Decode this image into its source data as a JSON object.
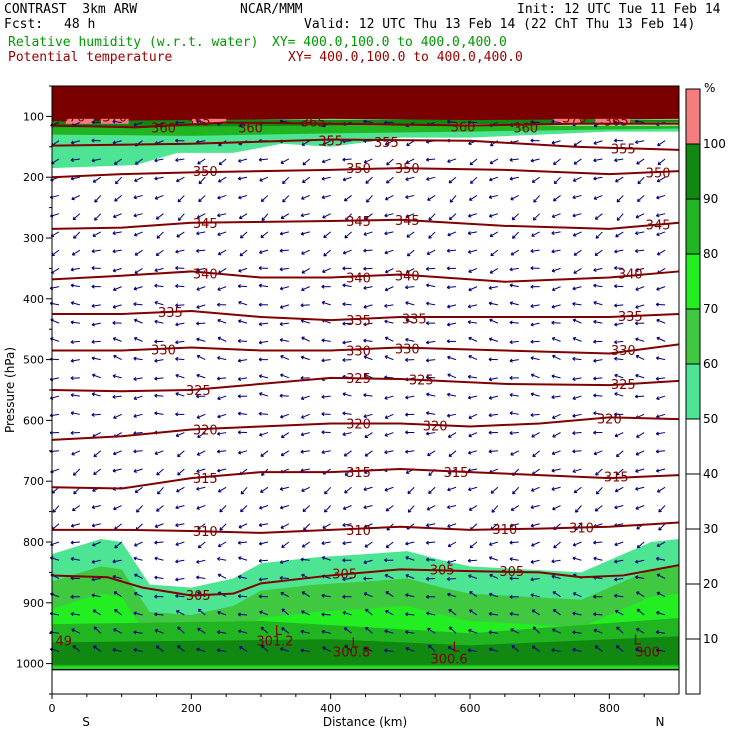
{
  "header": {
    "model": "CONTRAST  3km ARW",
    "fcst_label": "Fcst:",
    "fcst_value": "48 h",
    "center": "NCAR/MMM",
    "init": "Init: 12 UTC Tue 11 Feb 14",
    "valid": "Valid: 12 UTC Thu 13 Feb 14 (22 ChT Thu 13 Feb 14)",
    "field1_label": "Relative humidity (w.r.t. water)",
    "field1_xy": "XY= 400.0,100.0 to 400.0,400.0",
    "field2_label": "Potential temperature",
    "field2_xy": "XY= 400.0,100.0 to 400.0,400.0"
  },
  "chart_data": {
    "type": "heatmap",
    "title": "",
    "xlabel": "Distance (km)",
    "ylabel": "Pressure (hPa)",
    "xlim": [
      0,
      900
    ],
    "ylim": [
      1050,
      50
    ],
    "x_ticks": [
      "0",
      "200",
      "400",
      "600",
      "800"
    ],
    "x_tick_values": [
      0,
      200,
      400,
      600,
      800
    ],
    "y_ticks": [
      "100",
      "200",
      "300",
      "400",
      "500",
      "600",
      "700",
      "800",
      "900",
      "1000"
    ],
    "y_tick_values": [
      100,
      200,
      300,
      400,
      500,
      600,
      700,
      800,
      900,
      1000
    ],
    "x_end_labels": {
      "left": "S",
      "right": "N"
    },
    "colorbar": {
      "unit": "%",
      "levels": [
        10,
        20,
        30,
        40,
        50,
        60,
        70,
        80,
        90,
        100
      ],
      "bands": [
        {
          "from": 50,
          "to": 60,
          "color": "#4de594"
        },
        {
          "from": 60,
          "to": 70,
          "color": "#40c840"
        },
        {
          "from": 70,
          "to": 80,
          "color": "#22ee22"
        },
        {
          "from": 80,
          "to": 90,
          "color": "#22b522"
        },
        {
          "from": 90,
          "to": 100,
          "color": "#118811"
        },
        {
          "from": 100,
          "to": 110,
          "color": "#f47e7e"
        }
      ]
    },
    "moist_layers": [
      {
        "name": "upper",
        "top": [
          [
            0,
            115
          ],
          [
            900,
            115
          ]
        ],
        "bottom": [
          [
            0,
            185
          ],
          [
            120,
            180
          ],
          [
            180,
            160
          ],
          [
            260,
            160
          ],
          [
            330,
            145
          ],
          [
            400,
            150
          ],
          [
            500,
            135
          ],
          [
            600,
            135
          ],
          [
            700,
            130
          ],
          [
            800,
            125
          ],
          [
            900,
            125
          ]
        ],
        "color": "#4de594"
      },
      {
        "name": "boundary",
        "top": [
          [
            0,
            820
          ],
          [
            70,
            795
          ],
          [
            100,
            800
          ],
          [
            140,
            870
          ],
          [
            200,
            875
          ],
          [
            260,
            860
          ],
          [
            300,
            835
          ],
          [
            380,
            825
          ],
          [
            450,
            820
          ],
          [
            510,
            815
          ],
          [
            560,
            830
          ],
          [
            600,
            840
          ],
          [
            680,
            845
          ],
          [
            760,
            850
          ],
          [
            820,
            820
          ],
          [
            860,
            800
          ],
          [
            900,
            795
          ]
        ],
        "bottom": [
          [
            0,
            1010
          ],
          [
            900,
            1010
          ]
        ],
        "color": "#4de594"
      }
    ],
    "theta_series": [
      {
        "label": "360",
        "points": [
          [
            0,
            115
          ],
          [
            120,
            118
          ],
          [
            250,
            110
          ],
          [
            400,
            112
          ],
          [
            600,
            115
          ],
          [
            750,
            112
          ],
          [
            900,
            112
          ]
        ]
      },
      {
        "label": "355",
        "points": [
          [
            0,
            148
          ],
          [
            200,
            145
          ],
          [
            400,
            138
          ],
          [
            600,
            140
          ],
          [
            750,
            150
          ],
          [
            900,
            155
          ]
        ]
      },
      {
        "label": "350",
        "points": [
          [
            0,
            200
          ],
          [
            100,
            195
          ],
          [
            200,
            192
          ],
          [
            400,
            188
          ],
          [
            500,
            185
          ],
          [
            650,
            188
          ],
          [
            800,
            195
          ],
          [
            900,
            190
          ]
        ]
      },
      {
        "label": "345",
        "points": [
          [
            0,
            285
          ],
          [
            100,
            283
          ],
          [
            200,
            275
          ],
          [
            400,
            272
          ],
          [
            500,
            270
          ],
          [
            650,
            280
          ],
          [
            800,
            285
          ],
          [
            900,
            275
          ]
        ]
      },
      {
        "label": "340",
        "points": [
          [
            0,
            368
          ],
          [
            100,
            362
          ],
          [
            200,
            355
          ],
          [
            300,
            365
          ],
          [
            400,
            365
          ],
          [
            500,
            360
          ],
          [
            650,
            372
          ],
          [
            800,
            365
          ],
          [
            900,
            355
          ]
        ]
      },
      {
        "label": "335",
        "points": [
          [
            0,
            425
          ],
          [
            100,
            425
          ],
          [
            200,
            420
          ],
          [
            300,
            430
          ],
          [
            400,
            435
          ],
          [
            500,
            430
          ],
          [
            650,
            430
          ],
          [
            800,
            430
          ],
          [
            900,
            425
          ]
        ]
      },
      {
        "label": "330",
        "points": [
          [
            0,
            485
          ],
          [
            100,
            485
          ],
          [
            200,
            480
          ],
          [
            300,
            485
          ],
          [
            400,
            485
          ],
          [
            500,
            480
          ],
          [
            650,
            485
          ],
          [
            800,
            490
          ],
          [
            900,
            475
          ]
        ]
      },
      {
        "label": "325",
        "points": [
          [
            0,
            550
          ],
          [
            100,
            552
          ],
          [
            200,
            550
          ],
          [
            300,
            540
          ],
          [
            400,
            530
          ],
          [
            500,
            532
          ],
          [
            650,
            540
          ],
          [
            800,
            542
          ],
          [
            900,
            535
          ]
        ]
      },
      {
        "label": "320",
        "points": [
          [
            0,
            632
          ],
          [
            100,
            626
          ],
          [
            200,
            615
          ],
          [
            300,
            610
          ],
          [
            400,
            605
          ],
          [
            500,
            605
          ],
          [
            600,
            610
          ],
          [
            700,
            605
          ],
          [
            800,
            595
          ],
          [
            900,
            598
          ]
        ]
      },
      {
        "label": "315",
        "points": [
          [
            0,
            710
          ],
          [
            100,
            712
          ],
          [
            200,
            695
          ],
          [
            300,
            685
          ],
          [
            400,
            685
          ],
          [
            500,
            680
          ],
          [
            600,
            685
          ],
          [
            700,
            690
          ],
          [
            800,
            695
          ],
          [
            900,
            690
          ]
        ]
      },
      {
        "label": "310",
        "points": [
          [
            0,
            780
          ],
          [
            100,
            780
          ],
          [
            200,
            782
          ],
          [
            300,
            785
          ],
          [
            400,
            780
          ],
          [
            500,
            775
          ],
          [
            600,
            780
          ],
          [
            700,
            778
          ],
          [
            800,
            775
          ],
          [
            900,
            768
          ]
        ]
      },
      {
        "label": "305",
        "points": [
          [
            0,
            855
          ],
          [
            80,
            858
          ],
          [
            130,
            875
          ],
          [
            200,
            888
          ],
          [
            260,
            885
          ],
          [
            300,
            868
          ],
          [
            400,
            855
          ],
          [
            500,
            845
          ],
          [
            600,
            848
          ],
          [
            700,
            850
          ],
          [
            760,
            858
          ],
          [
            820,
            855
          ],
          [
            900,
            838
          ]
        ]
      }
    ],
    "theta_labels": [
      {
        "text": "360",
        "x": 160,
        "p": 118
      },
      {
        "text": "360",
        "x": 285,
        "p": 118
      },
      {
        "text": "365",
        "x": 375,
        "p": 108
      },
      {
        "text": "360",
        "x": 590,
        "p": 117
      },
      {
        "text": "360",
        "x": 680,
        "p": 118
      },
      {
        "text": "370",
        "x": 750,
        "p": 102
      },
      {
        "text": "365",
        "x": 810,
        "p": 107
      },
      {
        "text": "370",
        "x": 30,
        "p": 100
      },
      {
        "text": "370",
        "x": 90,
        "p": 100
      },
      {
        "text": "355",
        "x": 210,
        "p": 107
      },
      {
        "text": "355",
        "x": 400,
        "p": 140
      },
      {
        "text": "355",
        "x": 480,
        "p": 142
      },
      {
        "text": "355",
        "x": 820,
        "p": 153
      },
      {
        "text": "350",
        "x": 220,
        "p": 190
      },
      {
        "text": "350",
        "x": 440,
        "p": 185
      },
      {
        "text": "350",
        "x": 510,
        "p": 185
      },
      {
        "text": "350",
        "x": 870,
        "p": 192
      },
      {
        "text": "345",
        "x": 220,
        "p": 275
      },
      {
        "text": "345",
        "x": 440,
        "p": 272
      },
      {
        "text": "345",
        "x": 510,
        "p": 270
      },
      {
        "text": "345",
        "x": 870,
        "p": 278
      },
      {
        "text": "340",
        "x": 220,
        "p": 358
      },
      {
        "text": "340",
        "x": 440,
        "p": 365
      },
      {
        "text": "340",
        "x": 510,
        "p": 362
      },
      {
        "text": "340",
        "x": 830,
        "p": 358
      },
      {
        "text": "335",
        "x": 170,
        "p": 422
      },
      {
        "text": "335",
        "x": 440,
        "p": 435
      },
      {
        "text": "335",
        "x": 520,
        "p": 432
      },
      {
        "text": "335",
        "x": 830,
        "p": 428
      },
      {
        "text": "330",
        "x": 160,
        "p": 483
      },
      {
        "text": "330",
        "x": 440,
        "p": 485
      },
      {
        "text": "330",
        "x": 510,
        "p": 482
      },
      {
        "text": "330",
        "x": 820,
        "p": 484
      },
      {
        "text": "325",
        "x": 210,
        "p": 550
      },
      {
        "text": "325",
        "x": 440,
        "p": 530
      },
      {
        "text": "325",
        "x": 530,
        "p": 533
      },
      {
        "text": "325",
        "x": 820,
        "p": 540
      },
      {
        "text": "320",
        "x": 220,
        "p": 615
      },
      {
        "text": "320",
        "x": 440,
        "p": 605
      },
      {
        "text": "320",
        "x": 550,
        "p": 608
      },
      {
        "text": "320",
        "x": 800,
        "p": 597
      },
      {
        "text": "315",
        "x": 220,
        "p": 695
      },
      {
        "text": "315",
        "x": 440,
        "p": 685
      },
      {
        "text": "315",
        "x": 580,
        "p": 685
      },
      {
        "text": "315",
        "x": 810,
        "p": 692
      },
      {
        "text": "310",
        "x": 220,
        "p": 782
      },
      {
        "text": "310",
        "x": 440,
        "p": 780
      },
      {
        "text": "310",
        "x": 650,
        "p": 779
      },
      {
        "text": "310",
        "x": 760,
        "p": 776
      },
      {
        "text": "305",
        "x": 210,
        "p": 887
      },
      {
        "text": "305",
        "x": 420,
        "p": 852
      },
      {
        "text": "305",
        "x": 560,
        "p": 845
      },
      {
        "text": "305",
        "x": 660,
        "p": 848
      }
    ],
    "low_markers": [
      {
        "text": "L",
        "x": 325,
        "p": 945
      },
      {
        "text": "L",
        "x": 435,
        "p": 965
      },
      {
        "text": "L",
        "x": 580,
        "p": 972
      },
      {
        "text": "L",
        "x": 840,
        "p": 960
      }
    ],
    "value_labels": [
      {
        "text": "301.2",
        "x": 320,
        "p": 962
      },
      {
        "text": "300.8",
        "x": 430,
        "p": 980
      },
      {
        "text": "300.6",
        "x": 570,
        "p": 992
      },
      {
        "text": "300",
        "x": 855,
        "p": 980
      },
      {
        "text": "49",
        "x": 5,
        "p": 962
      }
    ],
    "grid": false,
    "legend": "right"
  }
}
